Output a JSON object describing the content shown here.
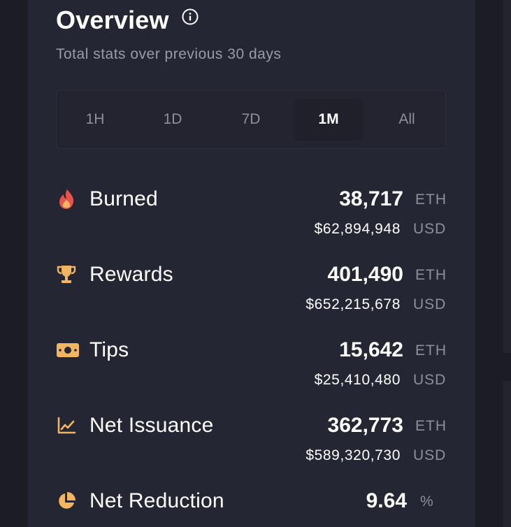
{
  "overview": {
    "title": "Overview",
    "subtitle": "Total stats over previous 30 days"
  },
  "tabs": [
    {
      "label": "1H",
      "active": false
    },
    {
      "label": "1D",
      "active": false
    },
    {
      "label": "7D",
      "active": false
    },
    {
      "label": "1M",
      "active": true
    },
    {
      "label": "All",
      "active": false
    }
  ],
  "stats": {
    "burned": {
      "label": "Burned",
      "icon": "flame-icon",
      "value": "38,717",
      "unit": "ETH",
      "usd": "$62,894,948",
      "usd_unit": "USD"
    },
    "rewards": {
      "label": "Rewards",
      "icon": "trophy-icon",
      "value": "401,490",
      "unit": "ETH",
      "usd": "$652,215,678",
      "usd_unit": "USD"
    },
    "tips": {
      "label": "Tips",
      "icon": "cash-icon",
      "value": "15,642",
      "unit": "ETH",
      "usd": "$25,410,480",
      "usd_unit": "USD"
    },
    "net_issuance": {
      "label": "Net Issuance",
      "icon": "chart-line-icon",
      "value": "362,773",
      "unit": "ETH",
      "usd": "$589,320,730",
      "usd_unit": "USD"
    },
    "net_reduction": {
      "label": "Net Reduction",
      "icon": "pie-chart-icon",
      "value": "9.64",
      "unit": "%"
    }
  },
  "colors": {
    "background": "#1b1c26",
    "card": "#252634",
    "accent_orange": "#f2b661",
    "flame_red": "#e8534d"
  }
}
